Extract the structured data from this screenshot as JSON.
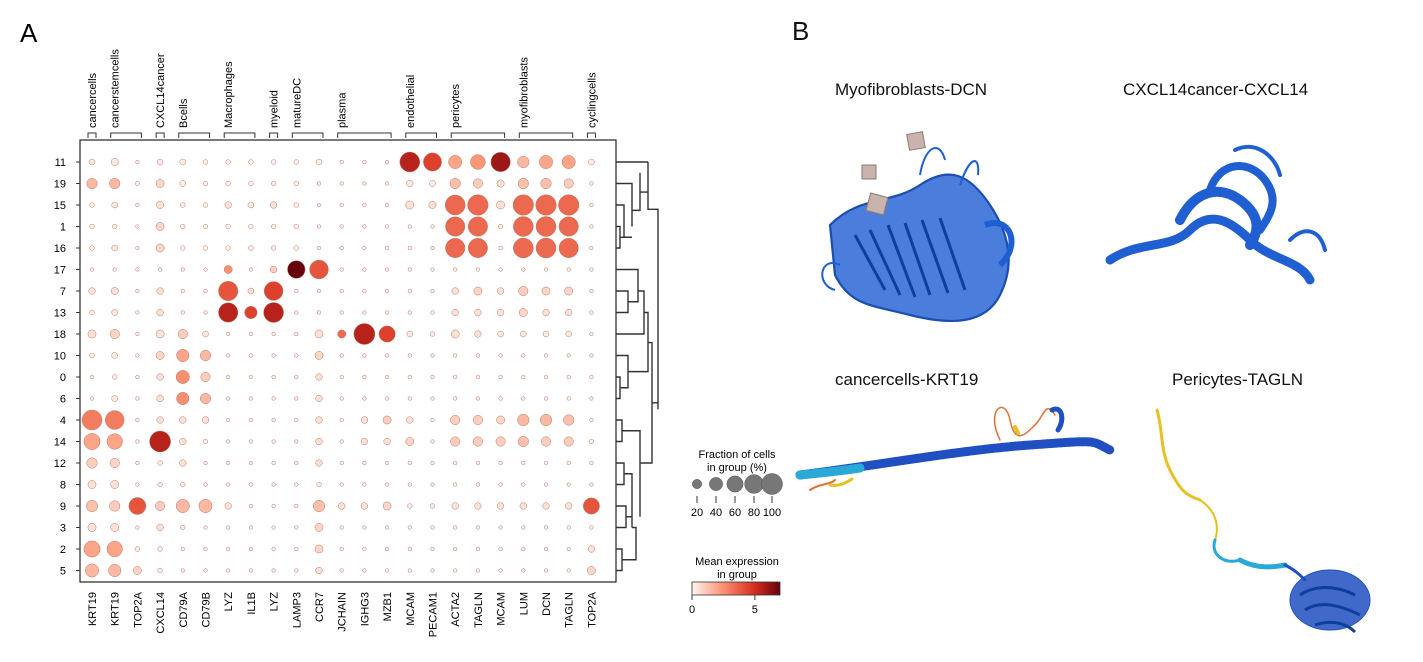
{
  "panel_a": {
    "label": "A"
  },
  "panel_b": {
    "label": "B",
    "structures": [
      {
        "title": "Myofibroblasts-DCN",
        "icon": "protein-structure-blue"
      },
      {
        "title": "CXCL14cancer-CXCL14",
        "icon": "protein-structure-blue"
      },
      {
        "title": "cancercells-KRT19",
        "icon": "protein-structure-plddt"
      },
      {
        "title": "Pericytes-TAGLN",
        "icon": "protein-structure-plddt"
      }
    ]
  },
  "colors": {
    "low": "#ffffff",
    "mid": "#f08a70",
    "high": "#d7301f",
    "max": "#67000d",
    "protein_blue": "#1f5fd1"
  },
  "chart_data": {
    "type": "dotplot",
    "groups": [
      {
        "name": "cancercells",
        "genes": [
          "KRT19"
        ]
      },
      {
        "name": "cancerstemcells",
        "genes": [
          "KRT19",
          "TOP2A"
        ]
      },
      {
        "name": "CXCL14cancer",
        "genes": [
          "CXCL14"
        ]
      },
      {
        "name": "Bcells",
        "genes": [
          "CD79A",
          "CD79B"
        ]
      },
      {
        "name": "Macrophages",
        "genes": [
          "LYZ",
          "IL1B"
        ]
      },
      {
        "name": "myeloid",
        "genes": [
          "LYZ"
        ]
      },
      {
        "name": "matureDC",
        "genes": [
          "LAMP3",
          "CCR7"
        ]
      },
      {
        "name": "plasma",
        "genes": [
          "JCHAIN",
          "IGHG3",
          "MZB1"
        ]
      },
      {
        "name": "endothelial",
        "genes": [
          "MCAM",
          "PECAM1"
        ]
      },
      {
        "name": "pericytes",
        "genes": [
          "ACTA2",
          "TAGLN",
          "MCAM"
        ]
      },
      {
        "name": "myofibroblasts",
        "genes": [
          "LUM",
          "DCN",
          "TAGLN"
        ]
      },
      {
        "name": "cyclingcells",
        "genes": [
          "TOP2A"
        ]
      }
    ],
    "genes": [
      "KRT19",
      "KRT19",
      "TOP2A",
      "CXCL14",
      "CD79A",
      "CD79B",
      "LYZ",
      "IL1B",
      "LYZ",
      "LAMP3",
      "CCR7",
      "JCHAIN",
      "IGHG3",
      "MZB1",
      "MCAM",
      "PECAM1",
      "ACTA2",
      "TAGLN",
      "MCAM",
      "LUM",
      "DCN",
      "TAGLN",
      "TOP2A"
    ],
    "clusters": [
      "11",
      "19",
      "15",
      "1",
      "16",
      "17",
      "7",
      "13",
      "18",
      "10",
      "0",
      "6",
      "4",
      "14",
      "12",
      "8",
      "9",
      "3",
      "2",
      "5"
    ],
    "fraction": [
      [
        8,
        12,
        3,
        8,
        8,
        5,
        5,
        5,
        5,
        5,
        8,
        3,
        3,
        3,
        90,
        75,
        40,
        50,
        85,
        30,
        40,
        40,
        8
      ],
      [
        25,
        25,
        4,
        15,
        8,
        5,
        5,
        5,
        5,
        5,
        3,
        3,
        3,
        3,
        10,
        8,
        25,
        20,
        12,
        25,
        25,
        20,
        3
      ],
      [
        5,
        8,
        3,
        12,
        5,
        5,
        10,
        8,
        10,
        5,
        3,
        3,
        3,
        3,
        15,
        12,
        90,
        95,
        15,
        95,
        95,
        95,
        3
      ],
      [
        5,
        5,
        3,
        15,
        5,
        5,
        5,
        5,
        5,
        5,
        3,
        3,
        3,
        3,
        3,
        3,
        85,
        85,
        5,
        90,
        90,
        85,
        3
      ],
      [
        5,
        8,
        3,
        15,
        5,
        5,
        5,
        5,
        5,
        5,
        3,
        3,
        3,
        3,
        3,
        3,
        85,
        85,
        3,
        90,
        90,
        85,
        3
      ],
      [
        3,
        3,
        3,
        3,
        3,
        3,
        15,
        3,
        10,
        70,
        80,
        3,
        3,
        3,
        3,
        3,
        3,
        3,
        3,
        3,
        3,
        3,
        3
      ],
      [
        10,
        12,
        3,
        10,
        3,
        3,
        85,
        8,
        80,
        3,
        3,
        3,
        3,
        3,
        3,
        3,
        10,
        15,
        10,
        20,
        15,
        15,
        3
      ],
      [
        5,
        8,
        3,
        10,
        3,
        3,
        85,
        35,
        90,
        3,
        3,
        3,
        3,
        3,
        3,
        3,
        10,
        10,
        10,
        15,
        10,
        10,
        3
      ],
      [
        15,
        20,
        3,
        15,
        20,
        8,
        3,
        3,
        3,
        3,
        15,
        15,
        100,
        60,
        8,
        5,
        15,
        10,
        8,
        8,
        8,
        8,
        3
      ],
      [
        5,
        8,
        3,
        15,
        35,
        25,
        3,
        3,
        3,
        3,
        15,
        3,
        3,
        3,
        3,
        3,
        3,
        3,
        3,
        3,
        3,
        3,
        3
      ],
      [
        3,
        5,
        3,
        10,
        40,
        20,
        3,
        3,
        3,
        3,
        10,
        3,
        3,
        3,
        3,
        3,
        3,
        3,
        3,
        3,
        3,
        3,
        3
      ],
      [
        3,
        8,
        3,
        10,
        35,
        25,
        3,
        3,
        3,
        3,
        10,
        3,
        3,
        3,
        3,
        3,
        3,
        3,
        3,
        3,
        3,
        3,
        3
      ],
      [
        90,
        80,
        3,
        10,
        10,
        10,
        3,
        3,
        3,
        3,
        10,
        3,
        10,
        15,
        10,
        3,
        20,
        20,
        15,
        30,
        30,
        25,
        3
      ],
      [
        60,
        55,
        3,
        100,
        10,
        5,
        3,
        3,
        3,
        3,
        10,
        3,
        10,
        10,
        15,
        3,
        20,
        20,
        20,
        25,
        20,
        20,
        5
      ],
      [
        25,
        20,
        3,
        5,
        10,
        3,
        3,
        3,
        3,
        3,
        10,
        3,
        3,
        3,
        3,
        3,
        3,
        3,
        3,
        3,
        3,
        3,
        3
      ],
      [
        15,
        15,
        3,
        5,
        5,
        3,
        3,
        3,
        3,
        3,
        5,
        3,
        3,
        3,
        3,
        3,
        3,
        3,
        3,
        3,
        3,
        3,
        3
      ],
      [
        30,
        25,
        65,
        20,
        40,
        40,
        10,
        3,
        3,
        3,
        30,
        10,
        10,
        15,
        5,
        5,
        10,
        10,
        10,
        10,
        10,
        10,
        60
      ],
      [
        15,
        15,
        3,
        10,
        5,
        3,
        3,
        3,
        3,
        3,
        15,
        3,
        3,
        3,
        3,
        3,
        3,
        3,
        3,
        3,
        3,
        3,
        3
      ],
      [
        60,
        55,
        5,
        5,
        3,
        3,
        3,
        3,
        3,
        3,
        15,
        3,
        3,
        3,
        3,
        3,
        3,
        3,
        3,
        3,
        3,
        3,
        10
      ],
      [
        40,
        35,
        15,
        5,
        3,
        3,
        3,
        3,
        3,
        3,
        10,
        3,
        3,
        3,
        3,
        3,
        3,
        3,
        3,
        3,
        3,
        3,
        15
      ]
    ],
    "expression": [
      [
        0.3,
        0.3,
        0.1,
        0.3,
        0.2,
        0.1,
        0.1,
        0.1,
        0.1,
        0.1,
        0.2,
        0.1,
        0.1,
        0.1,
        5.5,
        4.5,
        2.0,
        2.3,
        6.0,
        1.5,
        2.0,
        2.0,
        0.2
      ],
      [
        1.5,
        1.5,
        0.1,
        0.8,
        0.2,
        0.1,
        0.1,
        0.1,
        0.1,
        0.1,
        0.1,
        0.1,
        0.1,
        0.1,
        0.3,
        0.2,
        1.3,
        1.0,
        0.5,
        1.3,
        1.3,
        1.0,
        0.1
      ],
      [
        0.2,
        0.3,
        0.1,
        0.5,
        0.1,
        0.1,
        0.5,
        0.3,
        0.5,
        0.1,
        0.1,
        0.1,
        0.1,
        0.1,
        0.5,
        0.5,
        3.5,
        3.5,
        0.5,
        3.5,
        3.5,
        3.5,
        0.1
      ],
      [
        0.2,
        0.2,
        0.1,
        0.8,
        0.1,
        0.1,
        0.1,
        0.1,
        0.1,
        0.1,
        0.1,
        0.1,
        0.1,
        0.1,
        0.1,
        0.1,
        3.5,
        3.5,
        0.2,
        3.5,
        3.5,
        3.5,
        0.1
      ],
      [
        0.2,
        0.3,
        0.1,
        0.8,
        0.1,
        0.1,
        0.1,
        0.1,
        0.1,
        0.1,
        0.1,
        0.1,
        0.1,
        0.1,
        0.1,
        0.1,
        3.5,
        3.5,
        0.1,
        3.5,
        3.5,
        3.5,
        0.1
      ],
      [
        0.1,
        0.1,
        0.1,
        0.1,
        0.1,
        0.1,
        2.5,
        0.1,
        1.0,
        7.0,
        4.0,
        0.1,
        0.1,
        0.1,
        0.1,
        0.1,
        0.1,
        0.1,
        0.1,
        0.1,
        0.1,
        0.1,
        0.1
      ],
      [
        0.5,
        0.5,
        0.1,
        0.5,
        0.1,
        0.1,
        4.0,
        0.5,
        4.5,
        0.1,
        0.1,
        0.1,
        0.1,
        0.1,
        0.1,
        0.1,
        0.5,
        0.8,
        0.5,
        1.0,
        0.8,
        0.8,
        0.1
      ],
      [
        0.2,
        0.3,
        0.1,
        0.5,
        0.1,
        0.1,
        5.5,
        4.5,
        5.5,
        0.1,
        0.1,
        0.1,
        0.1,
        0.1,
        0.1,
        0.1,
        0.5,
        0.5,
        0.5,
        0.8,
        0.5,
        0.5,
        0.1
      ],
      [
        0.5,
        0.8,
        0.1,
        0.5,
        1.0,
        0.3,
        0.1,
        0.1,
        0.1,
        0.1,
        0.5,
        3.5,
        5.5,
        4.5,
        0.3,
        0.2,
        0.5,
        0.5,
        0.3,
        0.3,
        0.3,
        0.3,
        0.1
      ],
      [
        0.2,
        0.3,
        0.1,
        0.8,
        2.0,
        1.5,
        0.1,
        0.1,
        0.1,
        0.1,
        0.8,
        0.1,
        0.1,
        0.1,
        0.1,
        0.1,
        0.1,
        0.1,
        0.1,
        0.1,
        0.1,
        0.1,
        0.1
      ],
      [
        0.1,
        0.2,
        0.1,
        0.5,
        2.5,
        1.0,
        0.1,
        0.1,
        0.1,
        0.1,
        0.5,
        0.1,
        0.1,
        0.1,
        0.1,
        0.1,
        0.1,
        0.1,
        0.1,
        0.1,
        0.1,
        0.1,
        0.1
      ],
      [
        0.1,
        0.3,
        0.1,
        0.5,
        2.5,
        1.5,
        0.1,
        0.1,
        0.1,
        0.1,
        0.5,
        0.1,
        0.1,
        0.1,
        0.1,
        0.1,
        0.1,
        0.1,
        0.1,
        0.1,
        0.1,
        0.1,
        0.1
      ],
      [
        3.0,
        3.0,
        0.1,
        0.5,
        0.5,
        0.5,
        0.1,
        0.1,
        0.1,
        0.1,
        0.5,
        0.1,
        0.5,
        1.0,
        0.5,
        0.1,
        1.0,
        1.0,
        0.8,
        1.5,
        1.5,
        1.3,
        0.1
      ],
      [
        2.0,
        2.0,
        0.1,
        5.5,
        0.5,
        0.2,
        0.1,
        0.1,
        0.1,
        0.1,
        0.5,
        0.1,
        0.5,
        0.5,
        0.8,
        0.1,
        1.0,
        1.0,
        1.0,
        1.3,
        1.0,
        1.0,
        0.2
      ],
      [
        1.0,
        0.8,
        0.1,
        0.2,
        0.5,
        0.1,
        0.1,
        0.1,
        0.1,
        0.1,
        0.5,
        0.1,
        0.1,
        0.1,
        0.1,
        0.1,
        0.1,
        0.1,
        0.1,
        0.1,
        0.1,
        0.1,
        0.1
      ],
      [
        0.5,
        0.5,
        0.1,
        0.2,
        0.2,
        0.1,
        0.1,
        0.1,
        0.1,
        0.1,
        0.2,
        0.1,
        0.1,
        0.1,
        0.1,
        0.1,
        0.1,
        0.1,
        0.1,
        0.1,
        0.1,
        0.1,
        0.1
      ],
      [
        1.3,
        1.0,
        4.0,
        1.0,
        1.5,
        1.5,
        0.5,
        0.1,
        0.1,
        0.1,
        1.3,
        0.5,
        0.5,
        0.8,
        0.2,
        0.2,
        0.5,
        0.5,
        0.5,
        0.5,
        0.5,
        0.5,
        4.0
      ],
      [
        0.5,
        0.5,
        0.1,
        0.5,
        0.2,
        0.1,
        0.1,
        0.1,
        0.1,
        0.1,
        0.8,
        0.1,
        0.1,
        0.1,
        0.1,
        0.1,
        0.1,
        0.1,
        0.1,
        0.1,
        0.1,
        0.1,
        0.1
      ],
      [
        2.0,
        2.0,
        0.2,
        0.2,
        0.1,
        0.1,
        0.1,
        0.1,
        0.1,
        0.1,
        0.8,
        0.1,
        0.1,
        0.1,
        0.1,
        0.1,
        0.1,
        0.1,
        0.1,
        0.1,
        0.1,
        0.1,
        0.5
      ],
      [
        1.5,
        1.5,
        0.8,
        0.2,
        0.1,
        0.1,
        0.1,
        0.1,
        0.1,
        0.1,
        0.5,
        0.1,
        0.1,
        0.1,
        0.1,
        0.1,
        0.1,
        0.1,
        0.1,
        0.1,
        0.1,
        0.1,
        0.8
      ]
    ],
    "size_legend": {
      "title_line1": "Fraction of cells",
      "title_line2": "in group (%)",
      "ticks": [
        "20",
        "40",
        "60",
        "80",
        "100"
      ]
    },
    "color_legend": {
      "title_line1": "Mean expression",
      "title_line2": "in group",
      "ticks": [
        "0",
        "5"
      ],
      "range": [
        0,
        7
      ]
    }
  }
}
